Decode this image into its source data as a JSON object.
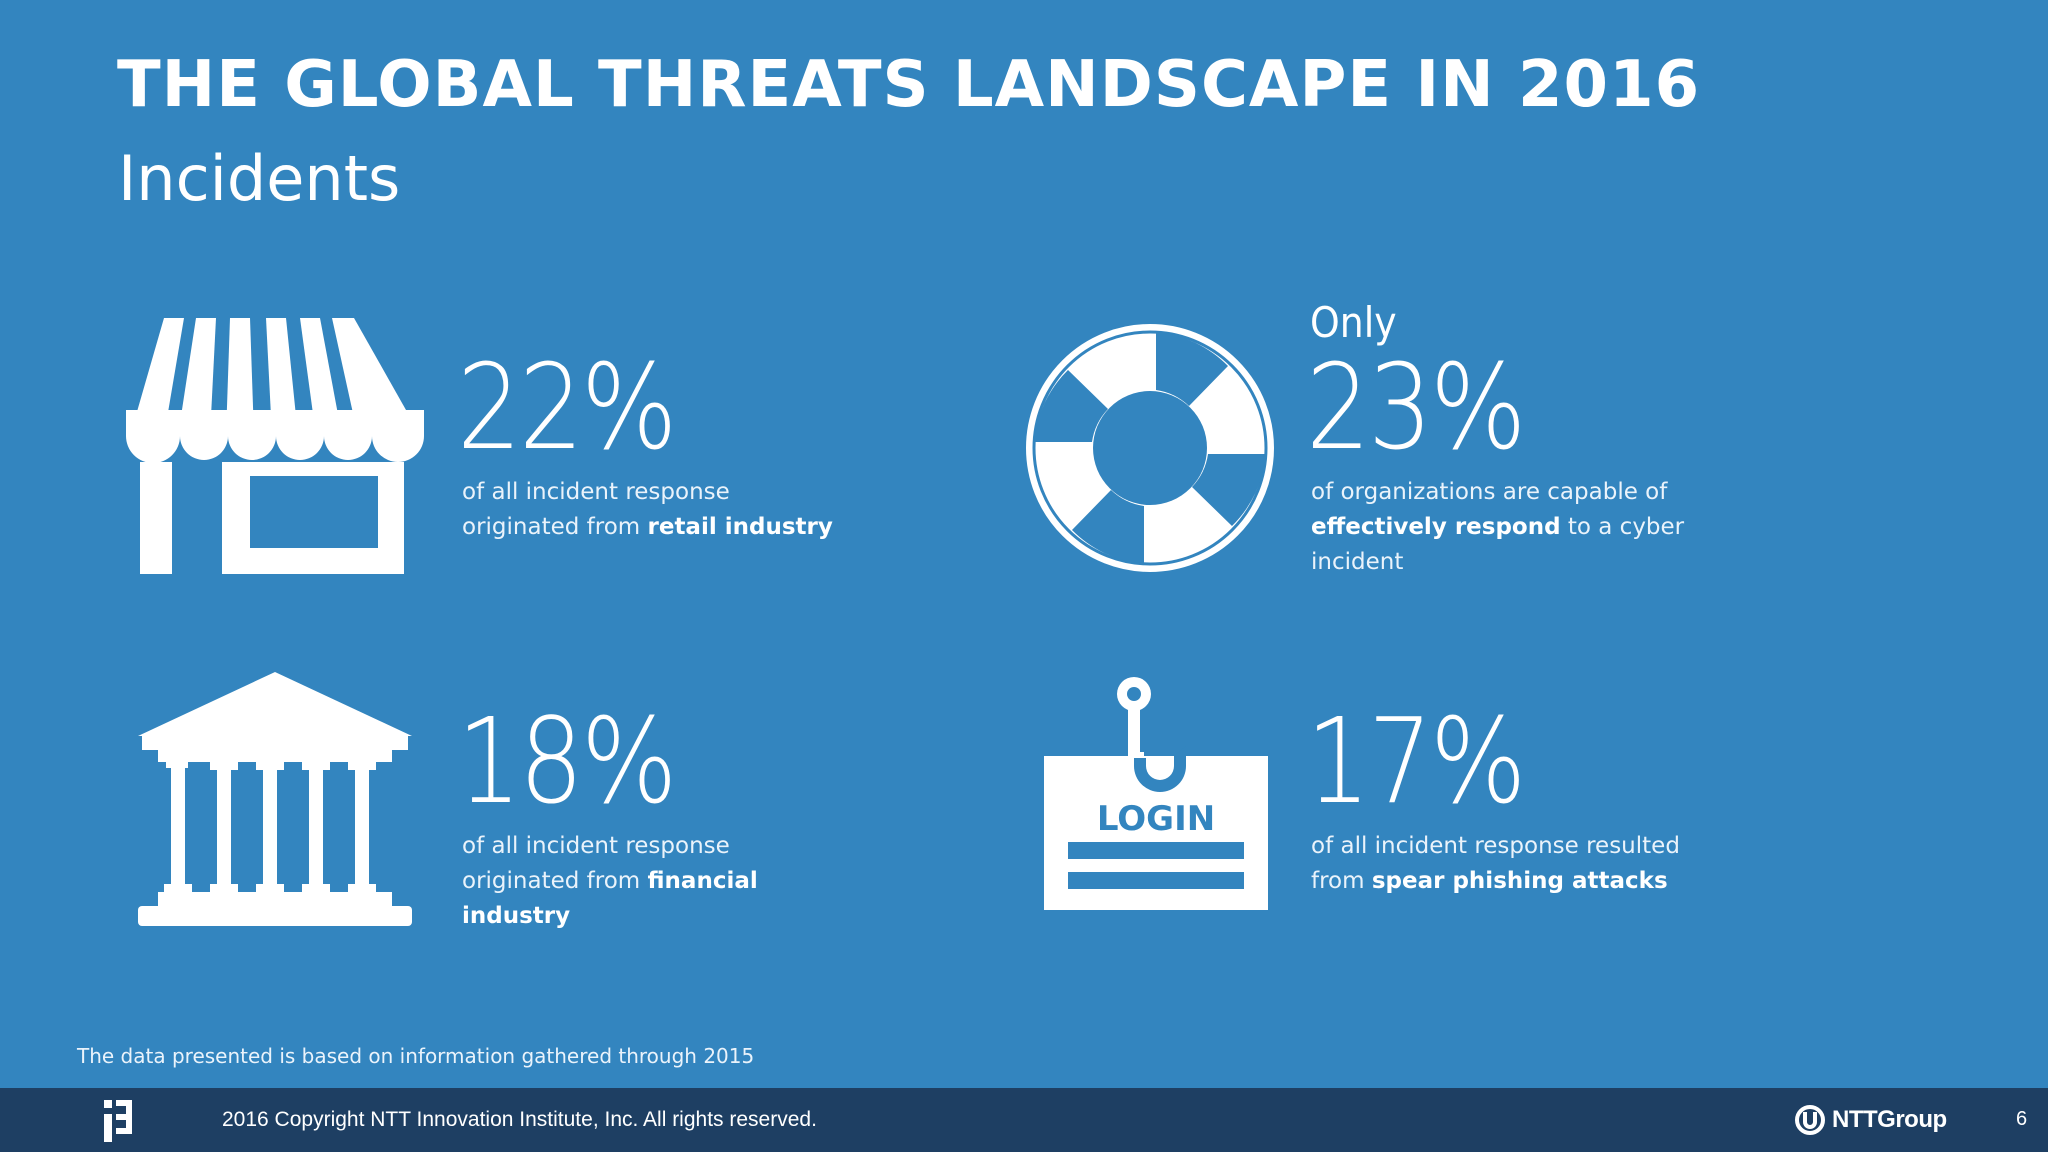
{
  "header": {
    "title": "THE GLOBAL THREATS LANDSCAPE IN 2016",
    "subtitle": "Incidents"
  },
  "stats": [
    {
      "icon": "storefront-icon",
      "value": "22%",
      "line1": "of all incident response",
      "line2_pre": "originated from ",
      "line2_bold": "retail industry"
    },
    {
      "icon": "lifebuoy-icon",
      "prefix": "Only",
      "value": "23%",
      "line1": "of organizations are capable of",
      "line2_bold": "effectively respond",
      "line2_post": " to a cyber",
      "line3": "incident"
    },
    {
      "icon": "bank-icon",
      "value": "18%",
      "line1": "of all incident response",
      "line2_pre": "originated from ",
      "line2_bold": "financial",
      "line3_bold": "industry"
    },
    {
      "icon": "phishing-login-icon",
      "icon_text": "LOGIN",
      "value": "17%",
      "line1": "of all incident response resulted",
      "line2_pre": "from ",
      "line2_bold": "spear phishing attacks"
    }
  ],
  "footnote": "The data presented is based on information gathered through 2015",
  "footer": {
    "copyright": "2016 Copyright NTT Innovation Institute, Inc. All rights reserved.",
    "brand": "NTTGroup",
    "page_number": "6"
  },
  "colors": {
    "background": "#3385bf",
    "footer": "#1e3f63",
    "text": "#ffffff"
  }
}
